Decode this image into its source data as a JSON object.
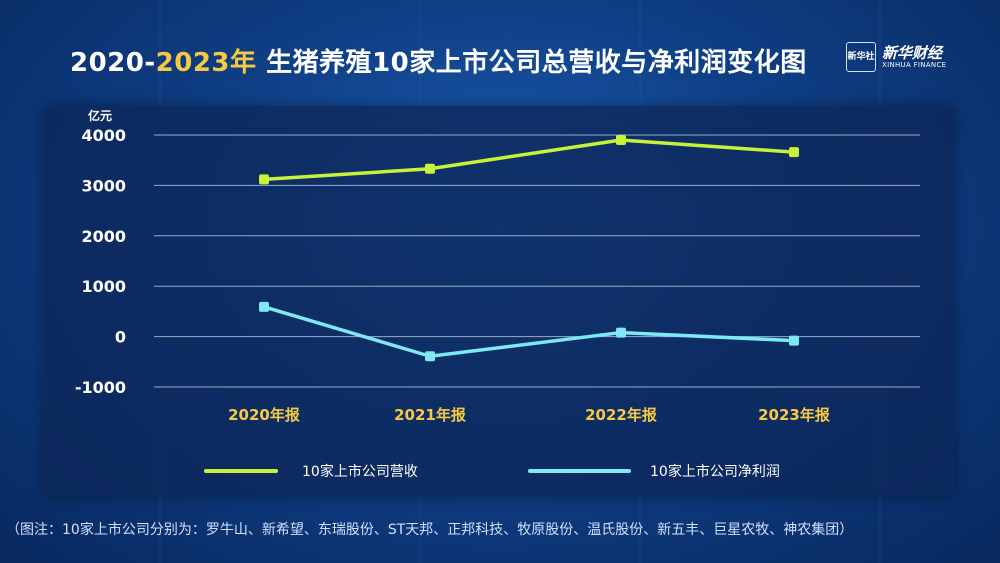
{
  "header": {
    "title_years_a": "2020-",
    "title_years_b": "2023年",
    "title_text": " 生猪养殖10家上市公司总营收与净利润变化图",
    "logo_badge": "新华社",
    "logo_name": "新华财经",
    "logo_en": "XINHUA FINANCE"
  },
  "footnote": "（图注：10家上市公司分别为：罗牛山、新希望、东瑞股份、ST天邦、正邦科技、牧原股份、温氏股份、新五丰、巨星农牧、神农集团）",
  "colors": {
    "revenue": "#c8f23a",
    "profit": "#7ee8f5",
    "highlight": "#f6c945"
  },
  "chart_data": {
    "type": "line",
    "categories": [
      "2020年报",
      "2021年报",
      "2022年报",
      "2023年报"
    ],
    "series": [
      {
        "name": "10家上市公司营收",
        "values": [
          3120,
          3330,
          3900,
          3660
        ]
      },
      {
        "name": "10家上市公司净利润",
        "values": [
          590,
          -390,
          80,
          -80
        ]
      }
    ],
    "ylabel": "亿元",
    "ylim": [
      -1000,
      4000
    ],
    "yticks": [
      4000,
      3000,
      2000,
      1000,
      0,
      -1000
    ],
    "grid": true,
    "legend": "bottom"
  }
}
